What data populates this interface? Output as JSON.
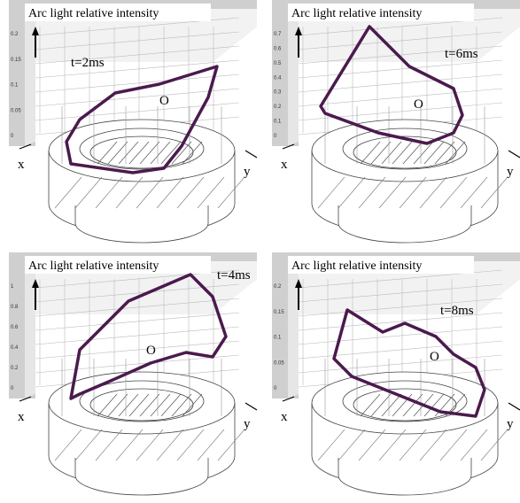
{
  "panels": [
    {
      "title": "Arc light relative intensity",
      "time": "t=2ms",
      "origin": "O",
      "x_label": "x",
      "y_label": "y",
      "ticks": [
        "0.2",
        "0.15",
        "0.1",
        "0.05",
        "0"
      ]
    },
    {
      "title": "Arc light relative intensity",
      "time": "t=6ms",
      "origin": "O",
      "x_label": "x",
      "y_label": "y",
      "ticks": [
        "0.7",
        "0.6",
        "0.5",
        "0.4",
        "0.3",
        "0.2",
        "0.1",
        "0"
      ]
    },
    {
      "title": "Arc light relative intensity",
      "time": "t=4ms",
      "origin": "O",
      "x_label": "x",
      "y_label": "y",
      "ticks": [
        "1",
        "0.8",
        "0.6",
        "0.4",
        "0.2",
        "0"
      ]
    },
    {
      "title": "Arc light relative intensity",
      "time": "t=8ms",
      "origin": "O",
      "x_label": "x",
      "y_label": "y",
      "ticks": [
        "0.2",
        "0.15",
        "0.1",
        "0.05",
        "0"
      ]
    }
  ]
}
